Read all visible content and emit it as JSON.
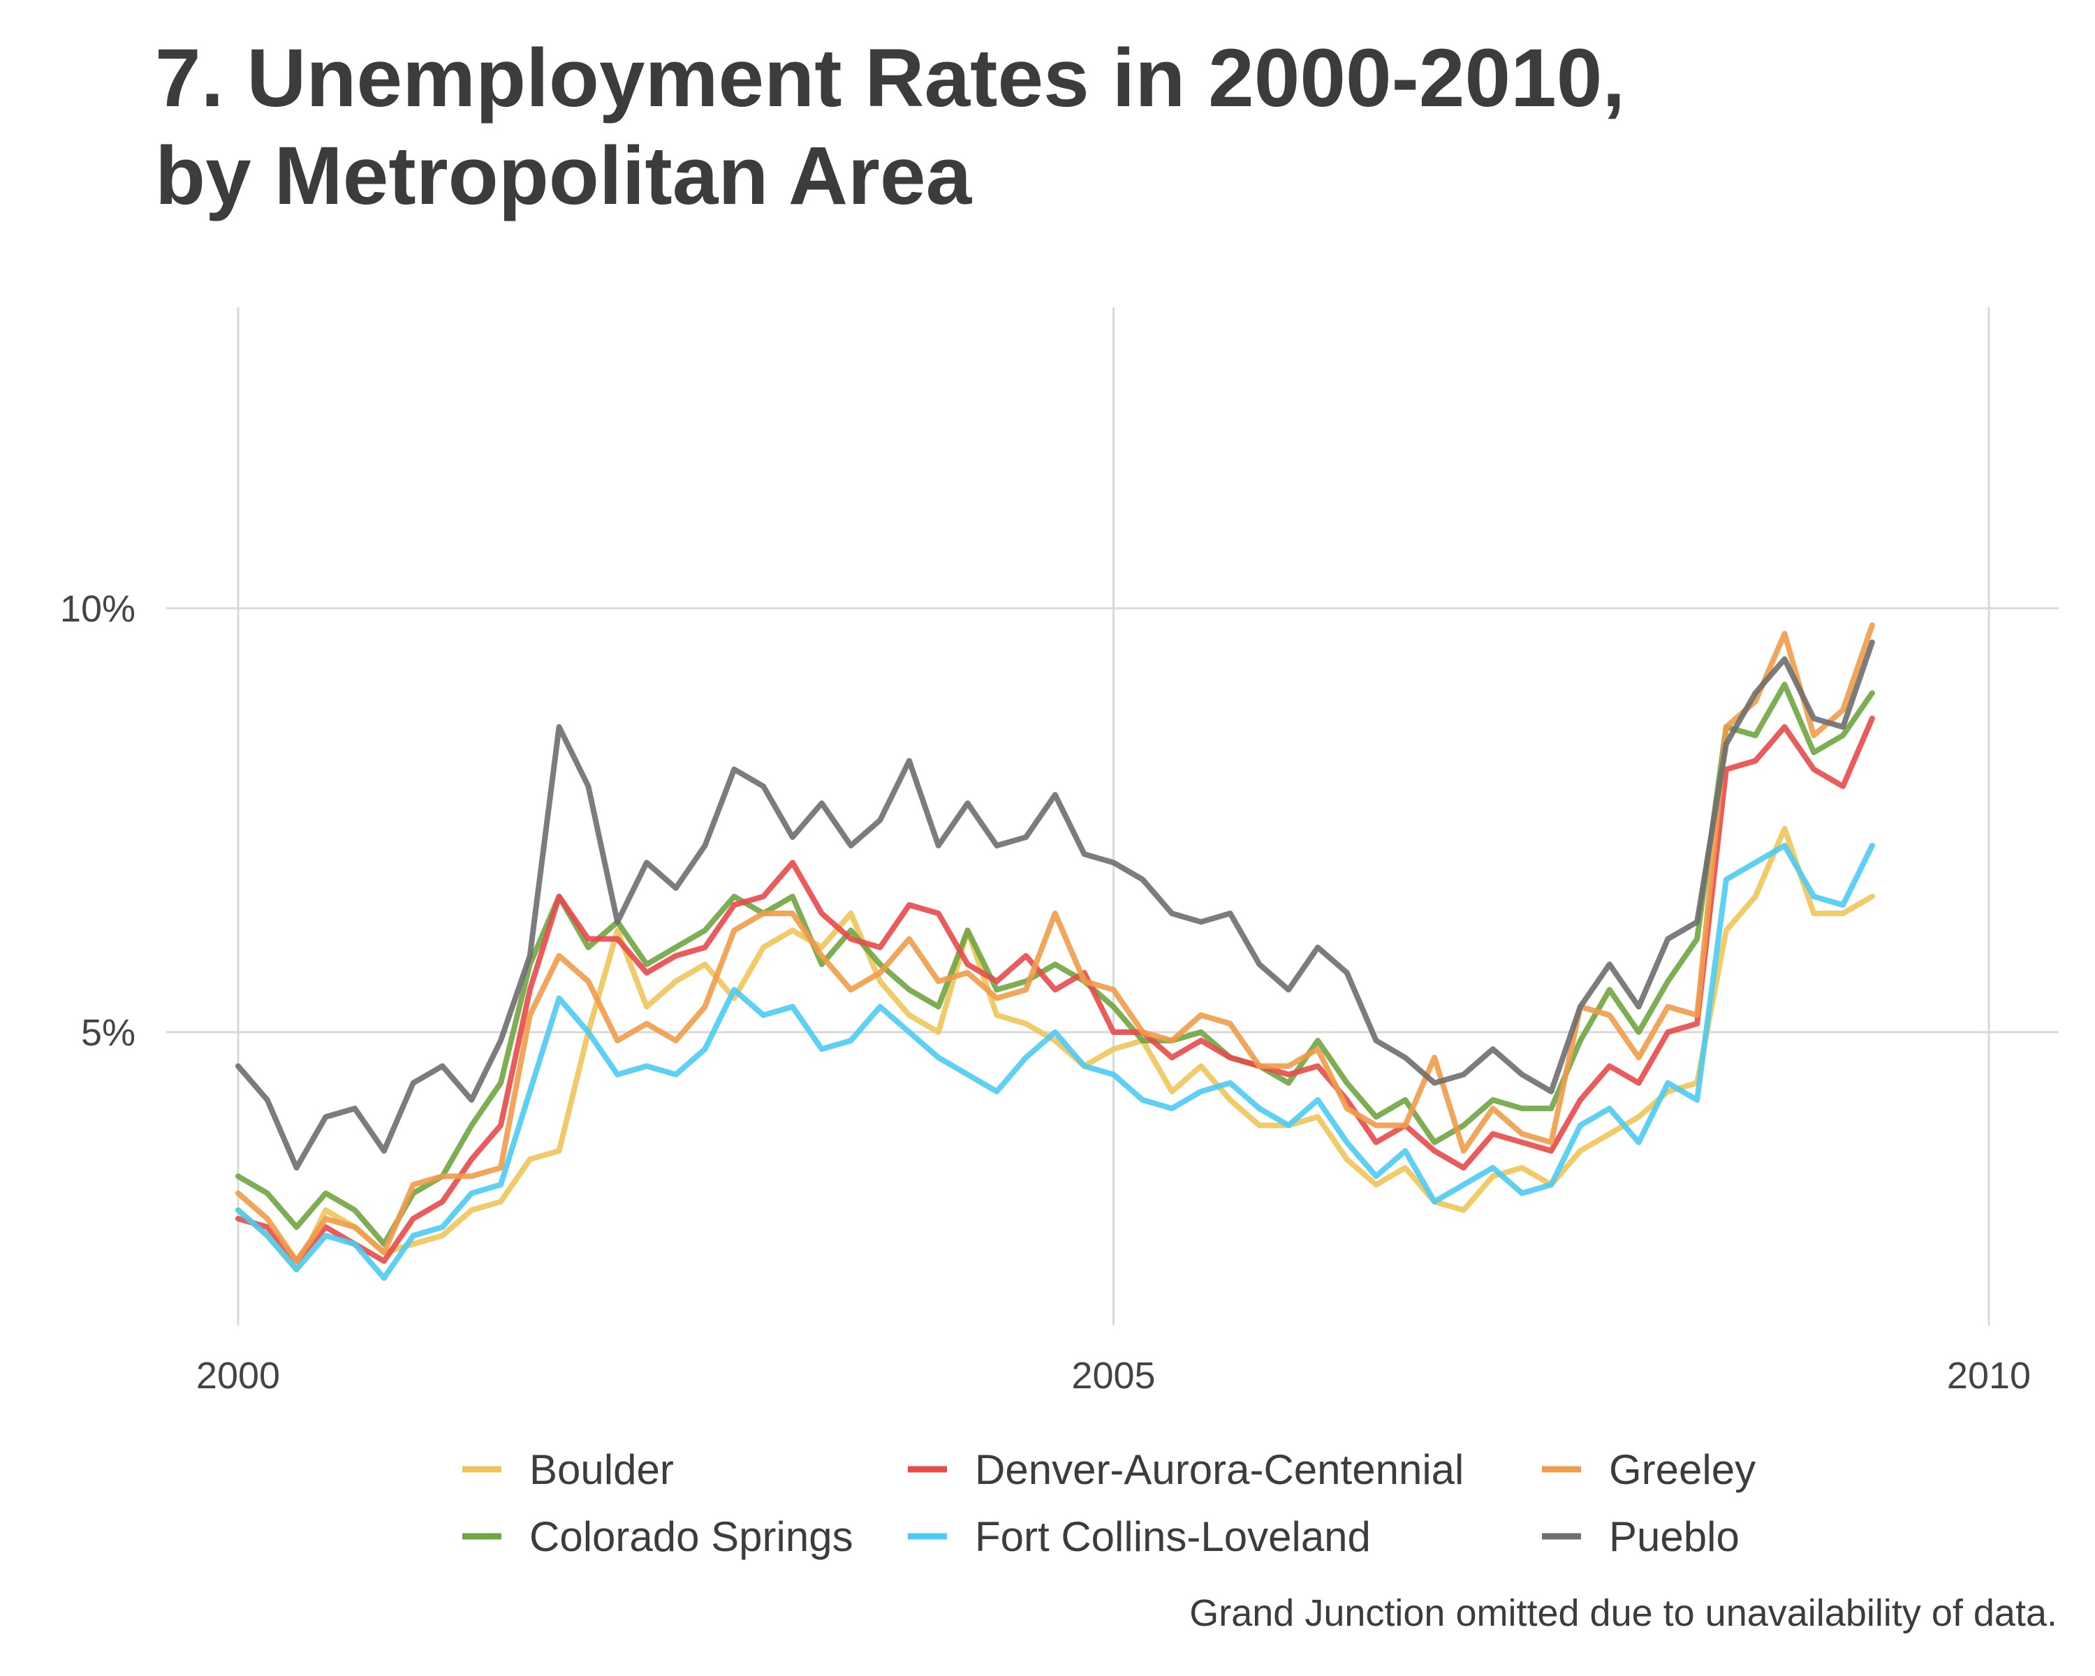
{
  "chart_title": {
    "line1": "7. Unemployment Rates in 2000-2010,",
    "line2": "by Metropolitan Area"
  },
  "caption": "Grand Junction omitted due to unavailability of data.",
  "colors": {
    "grid": "#d9d9d9",
    "text": "#3c3c3c"
  },
  "chart_data": {
    "type": "line",
    "title": "7. Unemployment Rates in 2000-2010, by Metropolitan Area",
    "xlabel": "",
    "ylabel": "",
    "xlim": [
      2000,
      2010.2
    ],
    "ylim": [
      2.0,
      12.5
    ],
    "x_ticks": [
      {
        "value": 2000,
        "label": "2000"
      },
      {
        "value": 2005,
        "label": "2005"
      },
      {
        "value": 2010,
        "label": "2010"
      }
    ],
    "y_ticks": [
      {
        "value": 5,
        "label": "5%"
      },
      {
        "value": 10,
        "label": "10%"
      }
    ],
    "grid": true,
    "legend_position": "bottom",
    "x_start": 2000,
    "x_step_months": 2,
    "series": [
      {
        "name": "Boulder",
        "color": "#f0c45a",
        "values": [
          2.9,
          2.6,
          2.2,
          2.9,
          2.7,
          2.4,
          2.5,
          2.6,
          2.9,
          3.0,
          3.5,
          3.6,
          5.0,
          6.2,
          5.3,
          5.6,
          5.8,
          5.4,
          6.0,
          6.2,
          6.0,
          6.4,
          5.6,
          5.2,
          5.0,
          6.2,
          5.2,
          5.1,
          4.9,
          4.6,
          4.8,
          4.9,
          4.3,
          4.6,
          4.2,
          3.9,
          3.9,
          4.0,
          3.5,
          3.2,
          3.4,
          3.0,
          2.9,
          3.3,
          3.4,
          3.2,
          3.6,
          3.8,
          4.0,
          4.3,
          4.4,
          6.2,
          6.6,
          7.4,
          6.4,
          6.4,
          6.6
        ]
      },
      {
        "name": "Colorado Springs",
        "color": "#6fa541",
        "values": [
          3.3,
          3.1,
          2.7,
          3.1,
          2.9,
          2.5,
          3.1,
          3.3,
          3.9,
          4.4,
          5.8,
          6.6,
          6.0,
          6.3,
          5.8,
          6.0,
          6.2,
          6.6,
          6.4,
          6.6,
          5.8,
          6.2,
          5.8,
          5.5,
          5.3,
          6.2,
          5.5,
          5.6,
          5.8,
          5.6,
          5.3,
          4.9,
          4.9,
          5.0,
          4.7,
          4.6,
          4.4,
          4.9,
          4.4,
          4.0,
          4.2,
          3.7,
          3.9,
          4.2,
          4.1,
          4.1,
          4.9,
          5.5,
          5.0,
          5.6,
          6.1,
          8.6,
          8.5,
          9.1,
          8.3,
          8.5,
          9.0
        ]
      },
      {
        "name": "Denver-Aurora-Centennial",
        "color": "#e84a4a",
        "values": [
          2.8,
          2.7,
          2.3,
          2.7,
          2.5,
          2.3,
          2.8,
          3.0,
          3.5,
          3.9,
          5.5,
          6.6,
          6.1,
          6.1,
          5.7,
          5.9,
          6.0,
          6.5,
          6.6,
          7.0,
          6.4,
          6.1,
          6.0,
          6.5,
          6.4,
          5.8,
          5.6,
          5.9,
          5.5,
          5.7,
          5.0,
          5.0,
          4.7,
          4.9,
          4.7,
          4.6,
          4.5,
          4.6,
          4.2,
          3.7,
          3.9,
          3.6,
          3.4,
          3.8,
          3.7,
          3.6,
          4.2,
          4.6,
          4.4,
          5.0,
          5.1,
          8.1,
          8.2,
          8.6,
          8.1,
          7.9,
          8.7
        ]
      },
      {
        "name": "Fort Collins-Loveland",
        "color": "#4dcbf2",
        "values": [
          2.9,
          2.6,
          2.2,
          2.6,
          2.5,
          2.1,
          2.6,
          2.7,
          3.1,
          3.2,
          4.3,
          5.4,
          5.0,
          4.5,
          4.6,
          4.5,
          4.8,
          5.5,
          5.2,
          5.3,
          4.8,
          4.9,
          5.3,
          5.0,
          4.7,
          4.5,
          4.3,
          4.7,
          5.0,
          4.6,
          4.5,
          4.2,
          4.1,
          4.3,
          4.4,
          4.1,
          3.9,
          4.2,
          3.7,
          3.3,
          3.6,
          3.0,
          3.2,
          3.4,
          3.1,
          3.2,
          3.9,
          4.1,
          3.7,
          4.4,
          4.2,
          6.8,
          7.0,
          7.2,
          6.6,
          6.5,
          7.2
        ]
      },
      {
        "name": "Greeley",
        "color": "#f09c4a",
        "values": [
          3.1,
          2.8,
          2.3,
          2.8,
          2.7,
          2.4,
          3.2,
          3.3,
          3.3,
          3.4,
          5.2,
          5.9,
          5.6,
          4.9,
          5.1,
          4.9,
          5.3,
          6.2,
          6.4,
          6.4,
          5.9,
          5.5,
          5.7,
          6.1,
          5.6,
          5.7,
          5.4,
          5.5,
          6.4,
          5.6,
          5.5,
          5.0,
          4.9,
          5.2,
          5.1,
          4.6,
          4.6,
          4.8,
          4.1,
          3.9,
          3.9,
          4.7,
          3.6,
          4.1,
          3.8,
          3.7,
          5.3,
          5.2,
          4.7,
          5.3,
          5.2,
          8.6,
          8.9,
          9.7,
          8.5,
          8.8,
          9.8
        ]
      },
      {
        "name": "Pueblo",
        "color": "#6e6e6e",
        "values": [
          4.6,
          4.2,
          3.4,
          4.0,
          4.1,
          3.6,
          4.4,
          4.6,
          4.2,
          4.9,
          5.9,
          8.6,
          7.9,
          6.3,
          7.0,
          6.7,
          7.2,
          8.1,
          7.9,
          7.3,
          7.7,
          7.2,
          7.5,
          8.2,
          7.2,
          7.7,
          7.2,
          7.3,
          7.8,
          7.1,
          7.0,
          6.8,
          6.4,
          6.3,
          6.4,
          5.8,
          5.5,
          6.0,
          5.7,
          4.9,
          4.7,
          4.4,
          4.5,
          4.8,
          4.5,
          4.3,
          5.3,
          5.8,
          5.3,
          6.1,
          6.3,
          8.4,
          9.0,
          9.4,
          8.7,
          8.6,
          9.6
        ]
      }
    ]
  },
  "legend": {
    "items": [
      {
        "label": "Boulder",
        "color": "#f0c45a"
      },
      {
        "label": "Denver-Aurora-Centennial",
        "color": "#e84a4a"
      },
      {
        "label": "Greeley",
        "color": "#f09c4a"
      },
      {
        "label": "Colorado Springs",
        "color": "#6fa541"
      },
      {
        "label": "Fort Collins-Loveland",
        "color": "#4dcbf2"
      },
      {
        "label": "Pueblo",
        "color": "#6e6e6e"
      }
    ]
  }
}
